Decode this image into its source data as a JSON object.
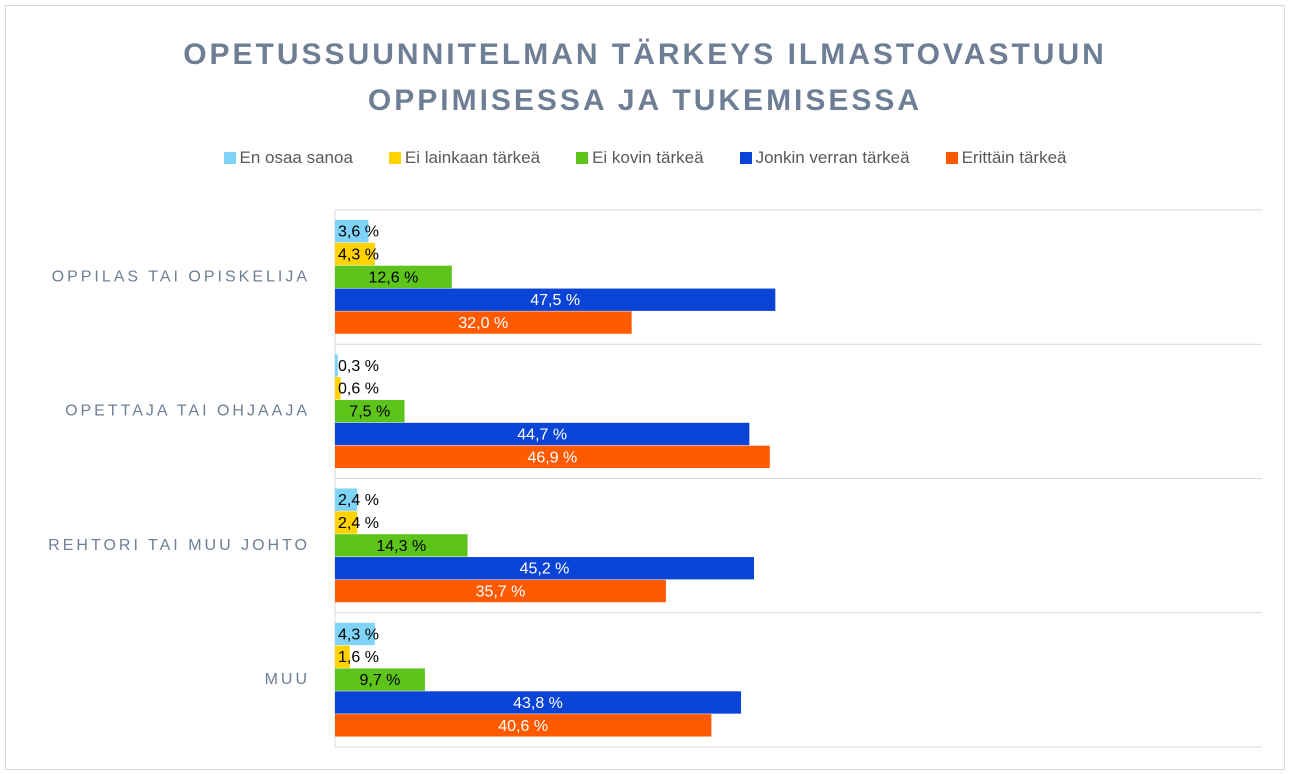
{
  "chart_data": {
    "type": "hbar",
    "title": "OPETUSSUUNNITELMAN TÄRKEYS ILMASTOVASTUUN OPPIMISESSA JA TUKEMISESSA",
    "categories": [
      "OPPILAS TAI OPISKELIJA",
      "OPETTAJA TAI OHJAAJA",
      "REHTORI TAI MUU JOHTO",
      "MUU"
    ],
    "xlim": [
      0,
      100
    ],
    "legend": "top",
    "series": [
      {
        "name": "En osaa sanoa",
        "color": "#7fd3f7",
        "label_color": "#000000",
        "values": [
          3.6,
          0.3,
          2.4,
          4.3
        ],
        "value_labels": [
          "3,6 %",
          "0,3 %",
          "2,4 %",
          "4,3 %"
        ]
      },
      {
        "name": "Ei lainkaan tärkeä",
        "color": "#ffd200",
        "label_color": "#000000",
        "values": [
          4.3,
          0.6,
          2.4,
          1.6
        ],
        "value_labels": [
          "4,3 %",
          "0,6 %",
          "2,4 %",
          "1,6 %"
        ]
      },
      {
        "name": "Ei kovin tärkeä",
        "color": "#5cc41a",
        "label_color": "#000000",
        "values": [
          12.6,
          7.5,
          14.3,
          9.7
        ],
        "value_labels": [
          "12,6 %",
          "7,5 %",
          "14,3 %",
          "9,7 %"
        ]
      },
      {
        "name": "Jonkin verran tärkeä",
        "color": "#0a44d6",
        "label_color": "#ffffff",
        "values": [
          47.5,
          44.7,
          45.2,
          43.8
        ],
        "value_labels": [
          "47,5 %",
          "44,7 %",
          "45,2 %",
          "43,8 %"
        ]
      },
      {
        "name": "Erittäin tärkeä",
        "color": "#ff5a00",
        "label_color": "#ffffff",
        "values": [
          32.0,
          46.9,
          35.7,
          40.6
        ],
        "value_labels": [
          "32,0 %",
          "46,9 %",
          "35,7 %",
          "40,6 %"
        ]
      }
    ]
  }
}
